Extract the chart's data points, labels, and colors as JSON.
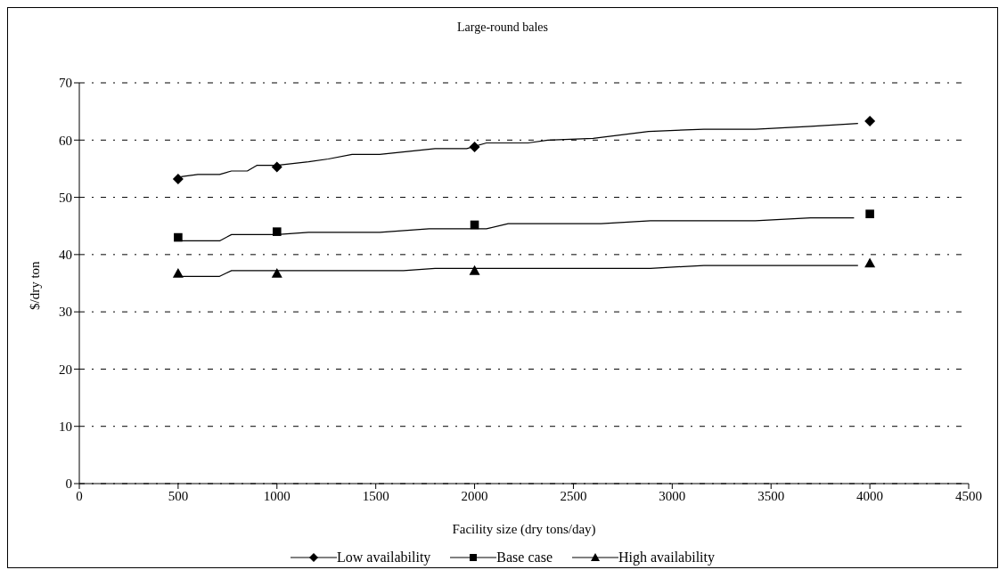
{
  "chart_data": {
    "type": "line",
    "title": "Large-round bales",
    "xlabel": "Facility size (dry tons/day)",
    "ylabel": "$/dry ton",
    "xlim": [
      0,
      4500
    ],
    "xticks": [
      0,
      500,
      1000,
      1500,
      2000,
      2500,
      3000,
      3500,
      4000,
      4500
    ],
    "ylim": [
      0,
      70
    ],
    "yticks": [
      0,
      10,
      20,
      30,
      40,
      50,
      60,
      70
    ],
    "grid": "y",
    "legend": "bottom",
    "line_style": "solid",
    "series": [
      {
        "color": "#000000",
        "x": [
          515,
          600,
          710,
          770,
          850,
          900,
          1000,
          1160,
          1260,
          1380,
          1520,
          1800,
          1960,
          2060,
          2270,
          2370,
          2600,
          2880,
          3160,
          3420,
          3700,
          3940
        ],
        "values": [
          53.6,
          54,
          54,
          54.6,
          54.6,
          55.6,
          55.6,
          56.2,
          56.7,
          57.5,
          57.5,
          58.5,
          58.5,
          59.5,
          59.5,
          60,
          60.3,
          61.5,
          61.9,
          61.9,
          62.4,
          62.9
        ]
      },
      {
        "color": "#000000",
        "x": [
          515,
          710,
          770,
          1000,
          1160,
          1520,
          1770,
          2060,
          2170,
          2640,
          2890,
          3420,
          3700,
          3920
        ],
        "values": [
          42.4,
          42.4,
          43.5,
          43.5,
          43.9,
          43.9,
          44.5,
          44.5,
          45.4,
          45.4,
          45.9,
          45.9,
          46.4,
          46.4
        ]
      },
      {
        "color": "#000000",
        "x": [
          515,
          710,
          770,
          1640,
          1800,
          2890,
          3160,
          3940
        ],
        "values": [
          36.2,
          36.2,
          37.2,
          37.2,
          37.6,
          37.6,
          38.1,
          38.1
        ]
      },
      {
        "type": "scatter",
        "name": "Low availability",
        "color": "#000000",
        "marker": "diamond",
        "x": [
          500,
          1000,
          2000,
          4000
        ],
        "values": [
          53.2,
          55.3,
          58.8,
          63.3
        ]
      },
      {
        "type": "scatter",
        "name": "Base case",
        "color": "#000000",
        "marker": "square",
        "x": [
          500,
          1000,
          2000,
          4000
        ],
        "values": [
          43,
          44,
          45.2,
          47.1
        ]
      },
      {
        "type": "scatter",
        "name": "High availability",
        "color": "#000000",
        "marker": "triangle",
        "x": [
          500,
          1000,
          2000,
          4000
        ],
        "values": [
          36.7,
          36.7,
          37.2,
          38.5
        ]
      }
    ]
  }
}
